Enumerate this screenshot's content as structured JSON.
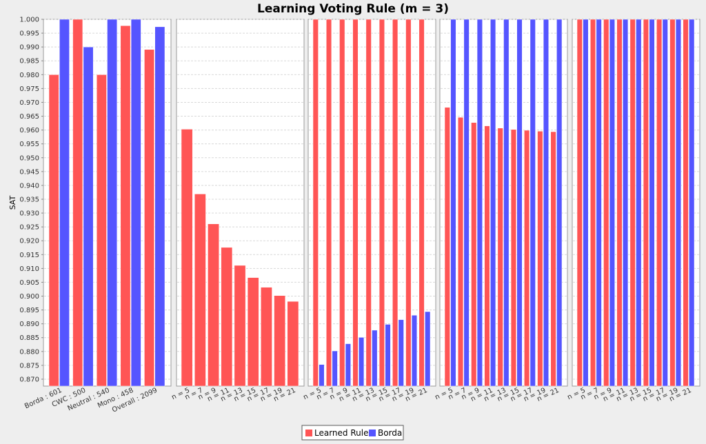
{
  "chart_data": {
    "type": "bar",
    "title": "Learning Voting Rule (m = 3)",
    "ylabel": "SAT",
    "ylim": [
      0.8675,
      1.0
    ],
    "y_ticks": [
      "0.870",
      "0.875",
      "0.880",
      "0.885",
      "0.890",
      "0.895",
      "0.900",
      "0.905",
      "0.910",
      "0.915",
      "0.920",
      "0.925",
      "0.930",
      "0.935",
      "0.940",
      "0.945",
      "0.950",
      "0.955",
      "0.960",
      "0.965",
      "0.970",
      "0.975",
      "0.980",
      "0.985",
      "0.990",
      "0.995",
      "1.000"
    ],
    "grid": true,
    "legend_position": "bottom",
    "series_names": [
      "Learned Rule",
      "Borda"
    ],
    "series_colors": [
      "#ff5555",
      "#5555ff"
    ],
    "panels": [
      {
        "categories": [
          "Borda : 601",
          "CWC : 500",
          "Neutral : 540",
          "Mono : 458",
          "Overall : 2099"
        ],
        "series": [
          {
            "name": "Learned Rule",
            "values": [
              0.98,
              1.0,
              0.98,
              0.9977,
              0.9891
            ]
          },
          {
            "name": "Borda",
            "values": [
              1.0,
              0.99,
              1.0,
              1.0,
              0.9973
            ]
          }
        ]
      },
      {
        "categories": [
          "n = 5",
          "n = 7",
          "n = 9",
          "n = 11",
          "n = 13",
          "n = 15",
          "n = 17",
          "n = 19",
          "n = 21"
        ],
        "series": [
          {
            "name": "Learned Rule",
            "values": [
              0.9603,
              0.9369,
              0.9261,
              0.9176,
              0.9111,
              0.9067,
              0.9032,
              0.9002,
              0.8981
            ]
          }
        ]
      },
      {
        "categories": [
          "n = 5",
          "n = 7",
          "n = 9",
          "n = 11",
          "n = 13",
          "n = 15",
          "n = 17",
          "n = 19",
          "n = 21"
        ],
        "series": [
          {
            "name": "Learned Rule",
            "values": [
              1.0,
              1.0,
              1.0,
              1.0,
              1.0,
              1.0,
              1.0,
              1.0,
              1.0
            ]
          },
          {
            "name": "Borda",
            "values": [
              0.8753,
              0.8802,
              0.8828,
              0.8851,
              0.8877,
              0.8898,
              0.8915,
              0.8931,
              0.8944
            ]
          }
        ]
      },
      {
        "categories": [
          "n = 5",
          "n = 7",
          "n = 9",
          "n = 11",
          "n = 13",
          "n = 15",
          "n = 17",
          "n = 19",
          "n = 21"
        ],
        "series": [
          {
            "name": "Learned Rule",
            "values": [
              0.9682,
              0.9646,
              0.9627,
              0.9615,
              0.9607,
              0.9602,
              0.9599,
              0.9596,
              0.9594
            ]
          },
          {
            "name": "Borda",
            "values": [
              1.0,
              1.0,
              1.0,
              1.0,
              1.0,
              1.0,
              1.0,
              1.0,
              1.0
            ]
          }
        ]
      },
      {
        "categories": [
          "n = 5",
          "n = 7",
          "n = 9",
          "n = 11",
          "n = 13",
          "n = 15",
          "n = 17",
          "n = 19",
          "n = 21"
        ],
        "series": [
          {
            "name": "Learned Rule",
            "values": [
              1.0,
              1.0,
              1.0,
              1.0,
              1.0,
              1.0,
              1.0,
              1.0,
              1.0
            ]
          },
          {
            "name": "Borda",
            "values": [
              1.0,
              1.0,
              1.0,
              1.0,
              1.0,
              1.0,
              1.0,
              1.0,
              1.0
            ]
          }
        ]
      }
    ]
  }
}
